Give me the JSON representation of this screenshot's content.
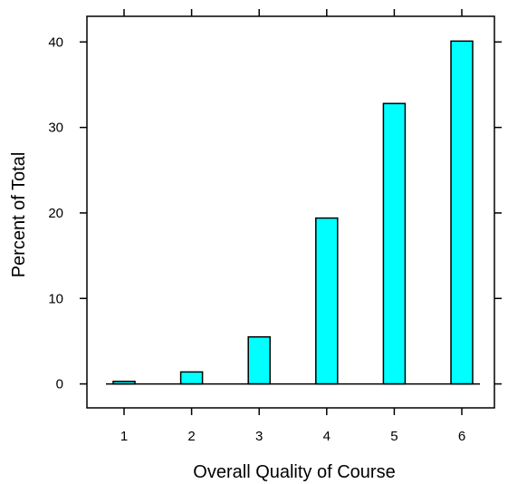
{
  "chart_data": {
    "type": "bar",
    "categories": [
      "1",
      "2",
      "3",
      "4",
      "5",
      "6"
    ],
    "values": [
      0.3,
      1.4,
      5.5,
      19.4,
      32.8,
      40.1
    ],
    "title": "",
    "xlabel": "Overall Quality of Course",
    "ylabel": "Percent of Total",
    "ylim": [
      -2.8,
      43
    ],
    "yticks": [
      "0",
      "10",
      "20",
      "30",
      "40"
    ],
    "bar_color": "#00ffff",
    "grid": false,
    "legend": "none"
  }
}
